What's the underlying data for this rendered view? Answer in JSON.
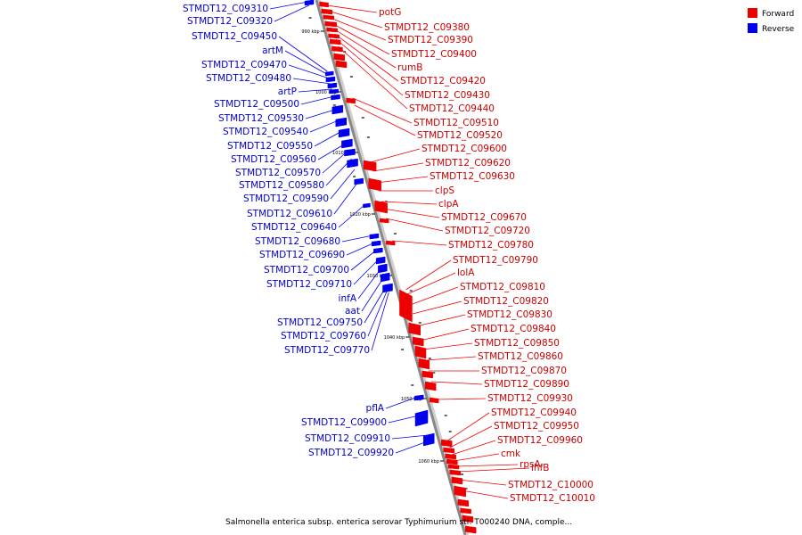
{
  "title": "Salmonella enterica subsp. enterica serovar Typhimurium str. T000240 DNA, comple...",
  "legend": [
    {
      "label": "Forward",
      "color": "#ee0000"
    },
    {
      "label": "Reverse",
      "color": "#0000ee"
    }
  ],
  "colors": {
    "forward": "#ee0000",
    "reverse": "#0000ee",
    "backbone": "#888888"
  },
  "ticks": [
    "990 kbp",
    "1000 kbp",
    "1010 kbp",
    "1020 kbp",
    "1030 kbp",
    "1040 kbp",
    "1050 kbp",
    "1060 kbp"
  ],
  "forward_labels": [
    "potG",
    "STMDT12_C09380",
    "STMDT12_C09390",
    "STMDT12_C09400",
    "rumB",
    "STMDT12_C09420",
    "STMDT12_C09430",
    "STMDT12_C09440",
    "STMDT12_C09510",
    "STMDT12_C09520",
    "STMDT12_C09600",
    "STMDT12_C09620",
    "STMDT12_C09630",
    "clpS",
    "clpA",
    "STMDT12_C09670",
    "STMDT12_C09720",
    "STMDT12_C09780",
    "STMDT12_C09790",
    "lolA",
    "STMDT12_C09810",
    "STMDT12_C09820",
    "STMDT12_C09830",
    "STMDT12_C09840",
    "STMDT12_C09850",
    "STMDT12_C09860",
    "STMDT12_C09870",
    "STMDT12_C09890",
    "STMDT12_C09930",
    "STMDT12_C09940",
    "STMDT12_C09950",
    "STMDT12_C09960",
    "cmk",
    "rpsA",
    "ihfB",
    "STMDT12_C10000",
    "STMDT12_C10010"
  ],
  "reverse_labels": [
    "STMDT12_C09310",
    "STMDT12_C09320",
    "STMDT12_C09450",
    "artM",
    "STMDT12_C09470",
    "STMDT12_C09480",
    "artP",
    "STMDT12_C09500",
    "STMDT12_C09530",
    "STMDT12_C09540",
    "STMDT12_C09550",
    "STMDT12_C09560",
    "STMDT12_C09570",
    "STMDT12_C09580",
    "STMDT12_C09590",
    "STMDT12_C09610",
    "STMDT12_C09640",
    "STMDT12_C09680",
    "STMDT12_C09690",
    "STMDT12_C09700",
    "STMDT12_C09710",
    "infA",
    "aat",
    "STMDT12_C09750",
    "STMDT12_C09760",
    "STMDT12_C09770",
    "pflA",
    "STMDT12_C09900",
    "STMDT12_C09910",
    "STMDT12_C09920"
  ]
}
